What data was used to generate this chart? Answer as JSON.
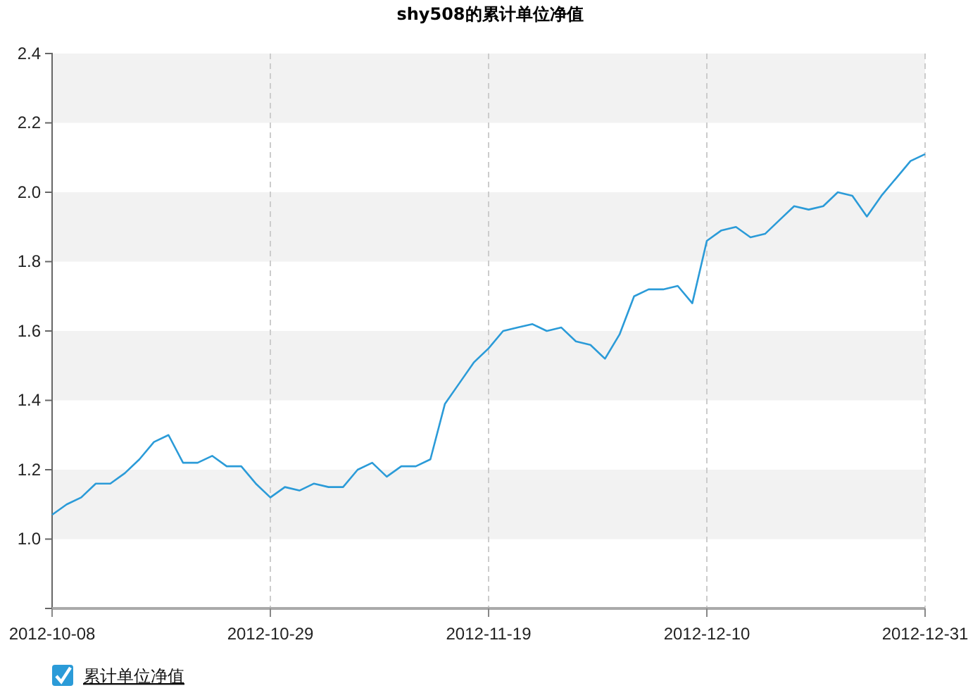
{
  "chart_data": {
    "type": "line",
    "title": "shy508的累计单位净值",
    "categories": [
      "2012-10-08",
      null,
      null,
      null,
      null,
      null,
      null,
      null,
      null,
      null,
      null,
      null,
      null,
      null,
      null,
      "2012-10-29",
      null,
      null,
      null,
      null,
      null,
      null,
      null,
      null,
      null,
      null,
      null,
      null,
      null,
      null,
      "2012-11-19",
      null,
      null,
      null,
      null,
      null,
      null,
      null,
      null,
      null,
      null,
      null,
      null,
      null,
      null,
      "2012-12-10",
      null,
      null,
      null,
      null,
      null,
      null,
      null,
      null,
      null,
      null,
      null,
      null,
      null,
      null,
      "2012-12-31"
    ],
    "series": [
      {
        "name": "累计单位净值",
        "color": "#2b9bd8",
        "values": [
          1.07,
          1.1,
          1.12,
          1.16,
          1.16,
          1.19,
          1.23,
          1.28,
          1.3,
          1.22,
          1.22,
          1.24,
          1.21,
          1.21,
          1.16,
          1.12,
          1.15,
          1.14,
          1.16,
          1.15,
          1.15,
          1.2,
          1.22,
          1.18,
          1.21,
          1.21,
          1.23,
          1.39,
          1.45,
          1.51,
          1.55,
          1.6,
          1.61,
          1.62,
          1.6,
          1.61,
          1.57,
          1.56,
          1.52,
          1.59,
          1.7,
          1.72,
          1.72,
          1.73,
          1.68,
          1.86,
          1.89,
          1.9,
          1.87,
          1.88,
          1.92,
          1.96,
          1.95,
          1.96,
          2.0,
          1.99,
          1.93,
          1.99,
          2.04,
          2.09,
          2.11
        ]
      }
    ],
    "ylim": [
      0.8,
      2.4
    ],
    "yticks": [
      {
        "value": 1,
        "label": "1.0"
      },
      1.2,
      1.4,
      1.6,
      1.8,
      {
        "value": 2,
        "label": "2.0"
      },
      2.2,
      2.4
    ],
    "grid": true,
    "legend": "bottom left",
    "marker": "none",
    "line_style": "solid"
  }
}
